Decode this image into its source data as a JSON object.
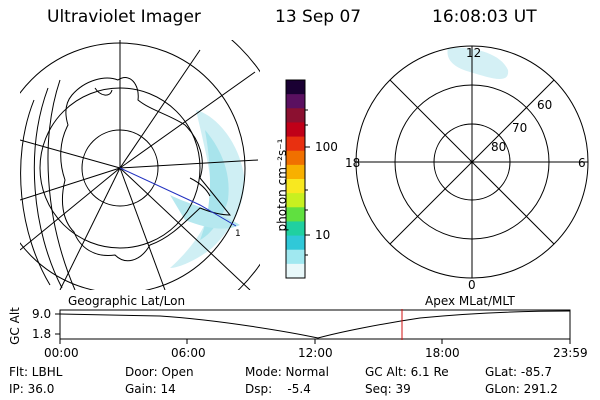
{
  "header": {
    "title": "Ultraviolet Imager",
    "date": "13 Sep 07",
    "time": "16:08:03 UT"
  },
  "colorbar": {
    "unit_label": "photon cm⁻²s⁻¹",
    "ticks": [
      "100",
      "10"
    ],
    "colors": [
      "#1a0033",
      "#5a1060",
      "#8b1030",
      "#c00018",
      "#e83010",
      "#f07000",
      "#f8b000",
      "#f8e820",
      "#c8f020",
      "#60e040",
      "#20d0a0",
      "#30c8d8",
      "#a0e8f0",
      "#e8f8fa"
    ]
  },
  "right_map": {
    "mlt_labels": {
      "top": "12",
      "left": "18",
      "right": "6",
      "bottom": "0"
    },
    "lat_labels": [
      "60",
      "70",
      "80"
    ]
  },
  "timeline": {
    "left_title": "Geographic Lat/Lon",
    "right_title": "Apex MLat/MLT",
    "axis_label": "GC Alt",
    "y_ticks": [
      "9.0",
      "1.8"
    ],
    "x_ticks": [
      "00:00",
      "06:00",
      "12:00",
      "18:00",
      "23:59"
    ],
    "marker_color": "#d01010"
  },
  "status": {
    "row1": [
      {
        "label": "Flt: LBHL"
      },
      {
        "label": "Door: Open"
      },
      {
        "label": "Mode: Normal"
      },
      {
        "label": "GC Alt: 6.1 Re"
      },
      {
        "label": "GLat: -85.7"
      }
    ],
    "row2": [
      {
        "label": "IP: 36.0"
      },
      {
        "label": "Gain: 14"
      },
      {
        "label": "Dsp:    -5.4"
      },
      {
        "label": "Seq: 39"
      },
      {
        "label": "GLon: 291.2"
      }
    ]
  }
}
